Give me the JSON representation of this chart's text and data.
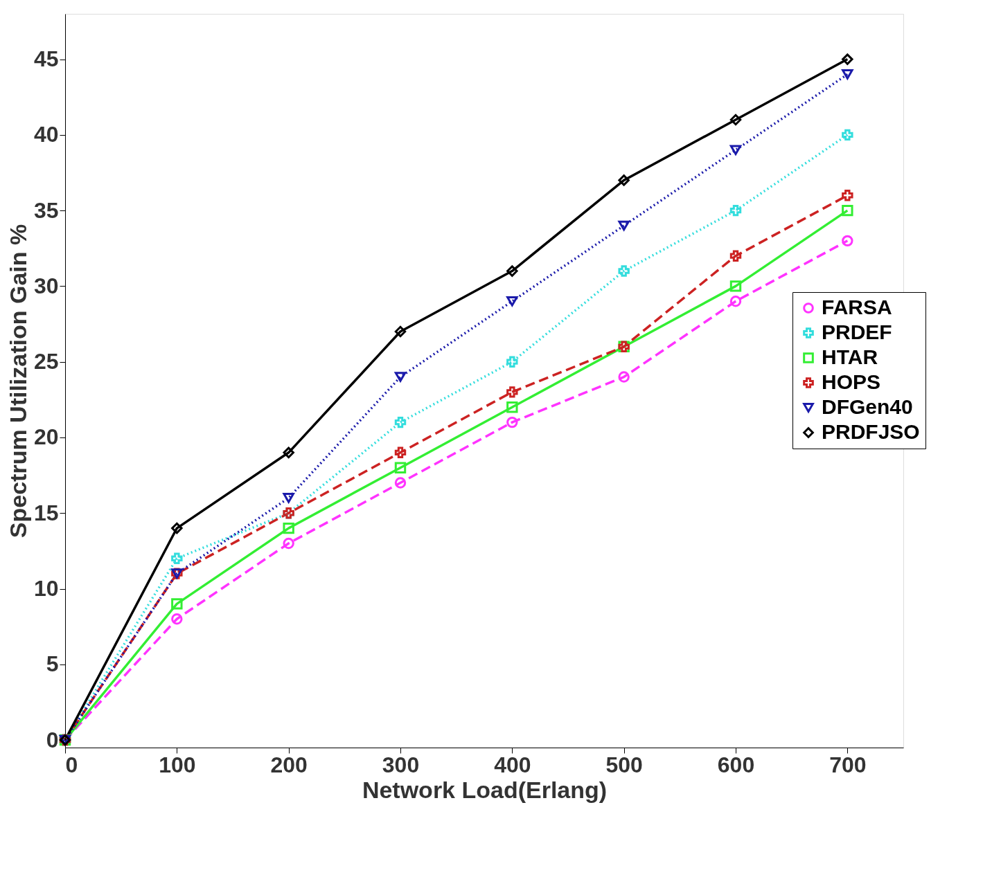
{
  "chart_data": {
    "type": "line",
    "xlabel": "Network Load(Erlang)",
    "ylabel": "Spectrum Utilization Gain %",
    "x": [
      0,
      100,
      200,
      300,
      400,
      500,
      600,
      700
    ],
    "xlim": [
      0,
      750
    ],
    "xticks": [
      0,
      100,
      200,
      300,
      400,
      500,
      600,
      700
    ],
    "ylim": [
      -0.5,
      48
    ],
    "yticks": [
      0,
      5,
      10,
      15,
      20,
      25,
      30,
      35,
      40,
      45
    ],
    "grid": false,
    "legend": "right",
    "series": [
      {
        "name": "FARSA",
        "color": "#ff33ff",
        "marker": "circle",
        "line_style": "dashed",
        "values": [
          0,
          8,
          13,
          17,
          21,
          24,
          29,
          33
        ]
      },
      {
        "name": "PRDEF",
        "color": "#33dddd",
        "marker": "cross",
        "line_style": "dotted",
        "values": [
          0,
          12,
          15,
          21,
          25,
          31,
          35,
          40
        ]
      },
      {
        "name": "HTAR",
        "color": "#33ee33",
        "marker": "square",
        "line_style": "solid",
        "values": [
          0,
          9,
          14,
          18,
          22,
          26,
          30,
          35
        ]
      },
      {
        "name": "HOPS",
        "color": "#cc2222",
        "marker": "cross",
        "line_style": "dashed",
        "values": [
          0,
          11,
          15,
          19,
          23,
          26,
          32,
          36
        ]
      },
      {
        "name": "DFGen40",
        "color": "#1a1aaa",
        "marker": "triangle",
        "line_style": "dotted",
        "values": [
          0,
          11,
          16,
          24,
          29,
          34,
          39,
          44
        ]
      },
      {
        "name": "PRDFJSO",
        "color": "#000000",
        "marker": "diamond",
        "line_style": "solid",
        "values": [
          0,
          14,
          19,
          27,
          31,
          37,
          41,
          45
        ]
      }
    ]
  }
}
